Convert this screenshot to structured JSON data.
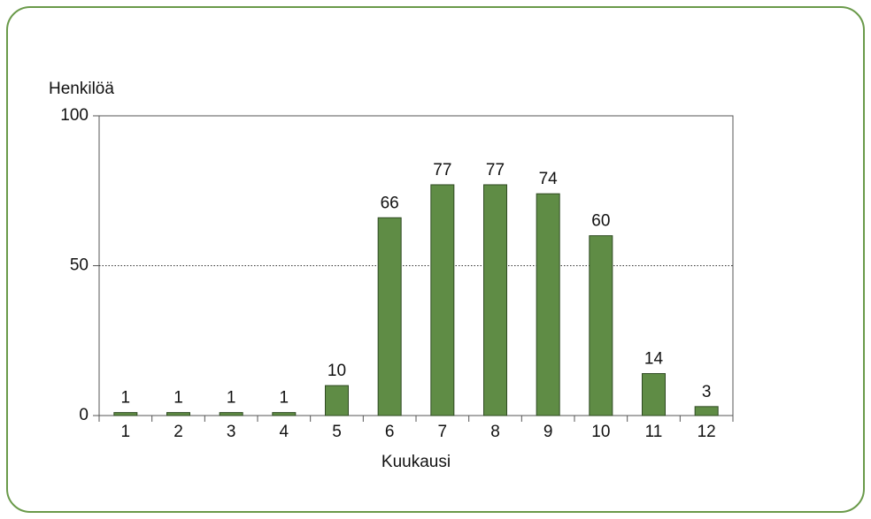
{
  "chart_data": {
    "type": "bar",
    "y_axis_label": "Henkilöä",
    "x_axis_label": "Kuukausi",
    "categories": [
      "1",
      "2",
      "3",
      "4",
      "5",
      "6",
      "7",
      "8",
      "9",
      "10",
      "11",
      "12"
    ],
    "values": [
      1,
      1,
      1,
      1,
      10,
      66,
      77,
      77,
      74,
      60,
      14,
      3
    ],
    "color": "#5f8c45",
    "ylim": [
      0,
      100
    ],
    "yticks": [
      0,
      50,
      100
    ],
    "grid": true
  }
}
